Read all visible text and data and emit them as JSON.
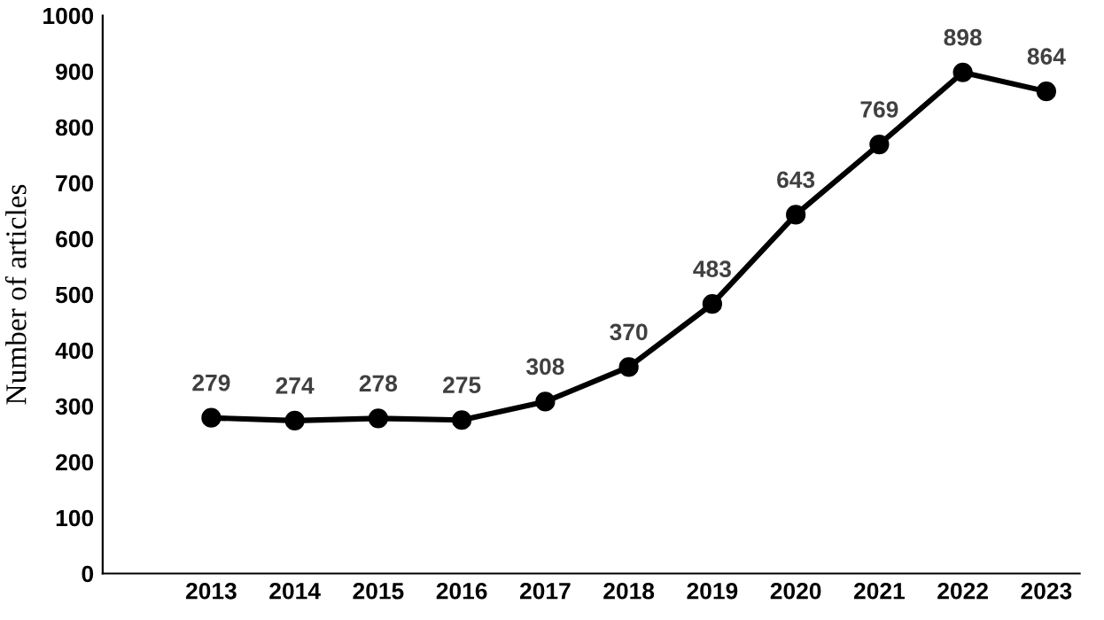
{
  "chart_data": {
    "type": "line",
    "ylabel": "Number of articles",
    "categories": [
      "2013",
      "2014",
      "2015",
      "2016",
      "2017",
      "2018",
      "2019",
      "2020",
      "2021",
      "2022",
      "2023"
    ],
    "series": [
      {
        "color": "#000000",
        "values": [
          279,
          274,
          278,
          275,
          308,
          370,
          483,
          643,
          769,
          898,
          864
        ]
      }
    ],
    "ylim": [
      0,
      1000
    ],
    "yticks": [
      0,
      100,
      200,
      300,
      400,
      500,
      600,
      700,
      800,
      900,
      1000
    ],
    "grid": false,
    "legend": false,
    "marker": "circle",
    "line_style": "solid",
    "data_labels": true
  }
}
